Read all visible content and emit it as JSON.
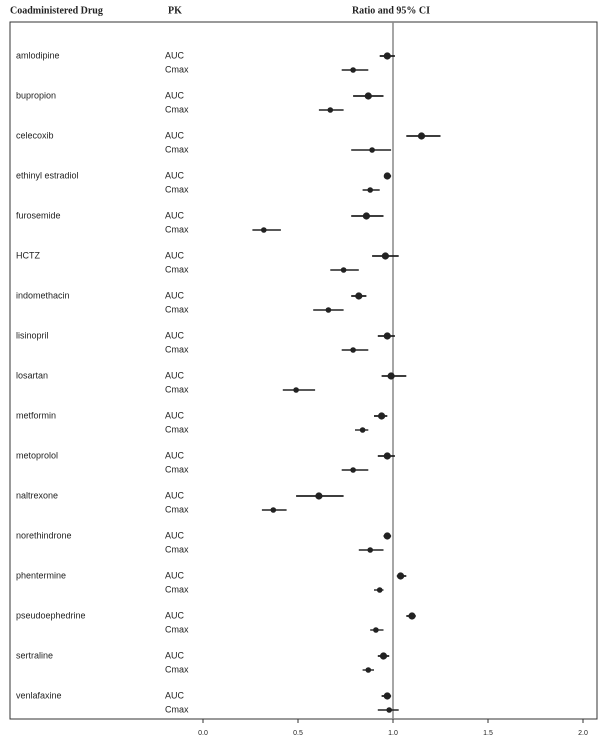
{
  "chart_data": {
    "type": "forest",
    "headers": [
      "Coadministered Drug",
      "PK",
      "Ratio and 95% CI"
    ],
    "xlim": [
      0,
      2
    ],
    "xticks": [
      {
        "value": 0,
        "label": "0.0"
      },
      {
        "value": 0.5,
        "label": "0.5"
      },
      {
        "value": 1,
        "label": "1.0"
      },
      {
        "value": 1.5,
        "label": "1.5"
      },
      {
        "value": 2,
        "label": "2.0"
      }
    ],
    "reference": 1,
    "color": "#222222",
    "rows": [
      {
        "drug": "amlodipine",
        "pk": [
          {
            "label": "AUC",
            "ratio": 0.97,
            "lo": 0.93,
            "hi": 1.01
          },
          {
            "label": "Cmax",
            "ratio": 0.79,
            "lo": 0.73,
            "hi": 0.87
          }
        ]
      },
      {
        "drug": "bupropion",
        "pk": [
          {
            "label": "AUC",
            "ratio": 0.87,
            "lo": 0.79,
            "hi": 0.95
          },
          {
            "label": "Cmax",
            "ratio": 0.67,
            "lo": 0.61,
            "hi": 0.74
          }
        ]
      },
      {
        "drug": "celecoxib",
        "pk": [
          {
            "label": "AUC",
            "ratio": 1.15,
            "lo": 1.07,
            "hi": 1.25
          },
          {
            "label": "Cmax",
            "ratio": 0.89,
            "lo": 0.78,
            "hi": 0.99
          }
        ]
      },
      {
        "drug": "ethinyl estradiol",
        "pk": [
          {
            "label": "AUC",
            "ratio": 0.97,
            "lo": 0.96,
            "hi": 0.99
          },
          {
            "label": "Cmax",
            "ratio": 0.88,
            "lo": 0.84,
            "hi": 0.93
          }
        ]
      },
      {
        "drug": "furosemide",
        "pk": [
          {
            "label": "AUC",
            "ratio": 0.86,
            "lo": 0.78,
            "hi": 0.95
          },
          {
            "label": "Cmax",
            "ratio": 0.32,
            "lo": 0.26,
            "hi": 0.41
          }
        ]
      },
      {
        "drug": "HCTZ",
        "pk": [
          {
            "label": "AUC",
            "ratio": 0.96,
            "lo": 0.89,
            "hi": 1.03
          },
          {
            "label": "Cmax",
            "ratio": 0.74,
            "lo": 0.67,
            "hi": 0.82
          }
        ]
      },
      {
        "drug": "indomethacin",
        "pk": [
          {
            "label": "AUC",
            "ratio": 0.82,
            "lo": 0.78,
            "hi": 0.86
          },
          {
            "label": "Cmax",
            "ratio": 0.66,
            "lo": 0.58,
            "hi": 0.74
          }
        ]
      },
      {
        "drug": "lisinopril",
        "pk": [
          {
            "label": "AUC",
            "ratio": 0.97,
            "lo": 0.92,
            "hi": 1.01
          },
          {
            "label": "Cmax",
            "ratio": 0.79,
            "lo": 0.73,
            "hi": 0.87
          }
        ]
      },
      {
        "drug": "losartan",
        "pk": [
          {
            "label": "AUC",
            "ratio": 0.99,
            "lo": 0.94,
            "hi": 1.07
          },
          {
            "label": "Cmax",
            "ratio": 0.49,
            "lo": 0.42,
            "hi": 0.59
          }
        ]
      },
      {
        "drug": "metformin",
        "pk": [
          {
            "label": "AUC",
            "ratio": 0.94,
            "lo": 0.9,
            "hi": 0.97
          },
          {
            "label": "Cmax",
            "ratio": 0.84,
            "lo": 0.8,
            "hi": 0.87
          }
        ]
      },
      {
        "drug": "metoprolol",
        "pk": [
          {
            "label": "AUC",
            "ratio": 0.97,
            "lo": 0.92,
            "hi": 1.01
          },
          {
            "label": "Cmax",
            "ratio": 0.79,
            "lo": 0.73,
            "hi": 0.87
          }
        ]
      },
      {
        "drug": "naltrexone",
        "pk": [
          {
            "label": "AUC",
            "ratio": 0.61,
            "lo": 0.49,
            "hi": 0.74
          },
          {
            "label": "Cmax",
            "ratio": 0.37,
            "lo": 0.31,
            "hi": 0.44
          }
        ]
      },
      {
        "drug": "norethindrone",
        "pk": [
          {
            "label": "AUC",
            "ratio": 0.97,
            "lo": 0.95,
            "hi": 0.99
          },
          {
            "label": "Cmax",
            "ratio": 0.88,
            "lo": 0.82,
            "hi": 0.95
          }
        ]
      },
      {
        "drug": "phentermine",
        "pk": [
          {
            "label": "AUC",
            "ratio": 1.04,
            "lo": 1.02,
            "hi": 1.07
          },
          {
            "label": "Cmax",
            "ratio": 0.93,
            "lo": 0.9,
            "hi": 0.95
          }
        ]
      },
      {
        "drug": "pseudoephedrine",
        "pk": [
          {
            "label": "AUC",
            "ratio": 1.1,
            "lo": 1.07,
            "hi": 1.12
          },
          {
            "label": "Cmax",
            "ratio": 0.91,
            "lo": 0.88,
            "hi": 0.95
          }
        ]
      },
      {
        "drug": "sertraline",
        "pk": [
          {
            "label": "AUC",
            "ratio": 0.95,
            "lo": 0.92,
            "hi": 0.98
          },
          {
            "label": "Cmax",
            "ratio": 0.87,
            "lo": 0.84,
            "hi": 0.9
          }
        ]
      },
      {
        "drug": "venlafaxine",
        "pk": [
          {
            "label": "AUC",
            "ratio": 0.97,
            "lo": 0.94,
            "hi": 0.99
          },
          {
            "label": "Cmax",
            "ratio": 0.98,
            "lo": 0.92,
            "hi": 1.03
          }
        ]
      }
    ]
  }
}
